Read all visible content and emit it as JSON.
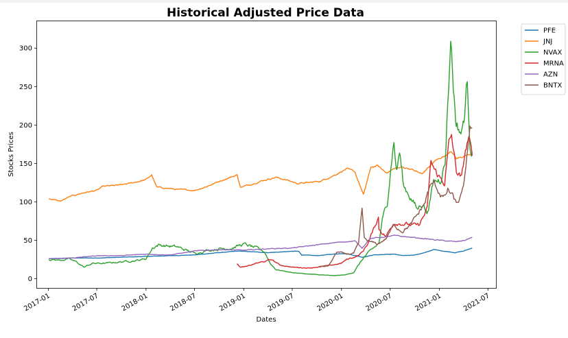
{
  "chart_data": {
    "type": "line",
    "title": "Historical Adjusted Price Data",
    "xlabel": "Dates",
    "ylabel": "Stocks Prices",
    "ylim": [
      -12,
      335
    ],
    "xlim": [
      "2016-11-20",
      "2021-07-31"
    ],
    "yticks": [
      0,
      50,
      100,
      150,
      200,
      250,
      300
    ],
    "xticks": [
      "2017-01",
      "2017-07",
      "2018-01",
      "2018-07",
      "2019-01",
      "2019-07",
      "2020-01",
      "2020-07",
      "2021-01",
      "2021-07"
    ],
    "grid": false,
    "legend_position": "outside-top-right",
    "series": [
      {
        "name": "PFE",
        "color": "#1f77b4",
        "points": [
          [
            "2017-01-03",
            26
          ],
          [
            "2017-04-01",
            27
          ],
          [
            "2017-07-01",
            27
          ],
          [
            "2017-10-01",
            28
          ],
          [
            "2018-01-02",
            29
          ],
          [
            "2018-04-01",
            30
          ],
          [
            "2018-07-01",
            31
          ],
          [
            "2018-10-01",
            34
          ],
          [
            "2018-12-15",
            36
          ],
          [
            "2019-02-01",
            35
          ],
          [
            "2019-04-01",
            34
          ],
          [
            "2019-06-01",
            35
          ],
          [
            "2019-07-25",
            36
          ],
          [
            "2019-08-05",
            31
          ],
          [
            "2019-10-01",
            30
          ],
          [
            "2019-12-01",
            32
          ],
          [
            "2020-01-15",
            33
          ],
          [
            "2020-03-20",
            28
          ],
          [
            "2020-05-01",
            31
          ],
          [
            "2020-07-15",
            32
          ],
          [
            "2020-08-15",
            30
          ],
          [
            "2020-10-01",
            31
          ],
          [
            "2020-11-09",
            34
          ],
          [
            "2020-12-10",
            38
          ],
          [
            "2021-01-15",
            36
          ],
          [
            "2021-03-01",
            34
          ],
          [
            "2021-04-01",
            36
          ],
          [
            "2021-05-03",
            40
          ]
        ]
      },
      {
        "name": "JNJ",
        "color": "#ff7f0e",
        "points": [
          [
            "2017-01-03",
            104
          ],
          [
            "2017-02-15",
            101
          ],
          [
            "2017-04-01",
            108
          ],
          [
            "2017-05-15",
            112
          ],
          [
            "2017-07-01",
            115
          ],
          [
            "2017-07-25",
            120
          ],
          [
            "2017-10-01",
            122
          ],
          [
            "2017-11-01",
            124
          ],
          [
            "2018-01-02",
            129
          ],
          [
            "2018-01-22",
            135
          ],
          [
            "2018-02-10",
            119
          ],
          [
            "2018-03-15",
            118
          ],
          [
            "2018-05-01",
            116
          ],
          [
            "2018-07-01",
            115
          ],
          [
            "2018-08-15",
            120
          ],
          [
            "2018-10-10",
            128
          ],
          [
            "2018-12-07",
            135
          ],
          [
            "2018-12-20",
            119
          ],
          [
            "2019-01-20",
            122
          ],
          [
            "2019-03-15",
            128
          ],
          [
            "2019-05-01",
            132
          ],
          [
            "2019-06-15",
            128
          ],
          [
            "2019-07-20",
            124
          ],
          [
            "2019-09-01",
            125
          ],
          [
            "2019-10-15",
            127
          ],
          [
            "2019-12-01",
            134
          ],
          [
            "2020-01-20",
            143
          ],
          [
            "2020-02-20",
            139
          ],
          [
            "2020-03-23",
            109
          ],
          [
            "2020-04-20",
            145
          ],
          [
            "2020-05-15",
            147
          ],
          [
            "2020-06-15",
            138
          ],
          [
            "2020-07-15",
            143
          ],
          [
            "2020-08-15",
            145
          ],
          [
            "2020-09-15",
            143
          ],
          [
            "2020-10-28",
            136
          ],
          [
            "2020-11-15",
            143
          ],
          [
            "2020-12-15",
            153
          ],
          [
            "2021-01-20",
            160
          ],
          [
            "2021-02-15",
            165
          ],
          [
            "2021-03-05",
            156
          ],
          [
            "2021-04-05",
            160
          ],
          [
            "2021-05-03",
            163
          ]
        ]
      },
      {
        "name": "NVAX",
        "color": "#2ca02c",
        "points": [
          [
            "2017-01-03",
            25
          ],
          [
            "2017-02-15",
            24
          ],
          [
            "2017-03-15",
            26
          ],
          [
            "2017-04-15",
            22
          ],
          [
            "2017-05-15",
            15
          ],
          [
            "2017-06-15",
            20
          ],
          [
            "2017-08-01",
            20
          ],
          [
            "2017-10-01",
            22
          ],
          [
            "2017-12-01",
            24
          ],
          [
            "2018-01-01",
            26
          ],
          [
            "2018-01-25",
            40
          ],
          [
            "2018-02-15",
            44
          ],
          [
            "2018-03-15",
            43
          ],
          [
            "2018-05-01",
            41
          ],
          [
            "2018-07-01",
            33
          ],
          [
            "2018-08-15",
            37
          ],
          [
            "2018-10-01",
            39
          ],
          [
            "2018-11-15",
            40
          ],
          [
            "2019-01-01",
            45
          ],
          [
            "2019-02-15",
            40
          ],
          [
            "2019-03-20",
            35
          ],
          [
            "2019-04-10",
            20
          ],
          [
            "2019-05-01",
            12
          ],
          [
            "2019-07-01",
            8
          ],
          [
            "2019-09-01",
            6
          ],
          [
            "2019-12-01",
            4
          ],
          [
            "2020-01-15",
            5
          ],
          [
            "2020-02-15",
            8
          ],
          [
            "2020-03-05",
            18
          ],
          [
            "2020-03-25",
            28
          ],
          [
            "2020-05-01",
            40
          ],
          [
            "2020-05-20",
            46
          ],
          [
            "2020-06-01",
            75
          ],
          [
            "2020-06-20",
            99
          ],
          [
            "2020-07-07",
            160
          ],
          [
            "2020-07-15",
            178
          ],
          [
            "2020-07-25",
            140
          ],
          [
            "2020-08-05",
            165
          ],
          [
            "2020-08-20",
            120
          ],
          [
            "2020-09-10",
            110
          ],
          [
            "2020-10-10",
            90
          ],
          [
            "2020-11-01",
            100
          ],
          [
            "2020-11-15",
            85
          ],
          [
            "2020-12-01",
            110
          ],
          [
            "2020-12-10",
            125
          ],
          [
            "2021-01-05",
            130
          ],
          [
            "2021-01-10",
            140
          ],
          [
            "2021-01-22",
            150
          ],
          [
            "2021-02-01",
            230
          ],
          [
            "2021-02-08",
            280
          ],
          [
            "2021-02-12",
            320
          ],
          [
            "2021-02-22",
            250
          ],
          [
            "2021-03-05",
            200
          ],
          [
            "2021-03-25",
            190
          ],
          [
            "2021-04-05",
            215
          ],
          [
            "2021-04-15",
            257
          ],
          [
            "2021-04-25",
            180
          ],
          [
            "2021-05-03",
            165
          ]
        ]
      },
      {
        "name": "MRNA",
        "color": "#d62728",
        "points": [
          [
            "2018-12-07",
            19
          ],
          [
            "2018-12-20",
            15
          ],
          [
            "2019-01-15",
            16
          ],
          [
            "2019-02-15",
            20
          ],
          [
            "2019-03-15",
            22
          ],
          [
            "2019-04-15",
            25
          ],
          [
            "2019-05-15",
            18
          ],
          [
            "2019-07-01",
            15
          ],
          [
            "2019-09-01",
            14
          ],
          [
            "2019-11-15",
            17
          ],
          [
            "2019-12-31",
            20
          ],
          [
            "2020-01-20",
            25
          ],
          [
            "2020-02-15",
            28
          ],
          [
            "2020-03-03",
            30
          ],
          [
            "2020-03-20",
            35
          ],
          [
            "2020-04-10",
            47
          ],
          [
            "2020-05-18",
            80
          ],
          [
            "2020-05-20",
            65
          ],
          [
            "2020-06-15",
            55
          ],
          [
            "2020-07-15",
            73
          ],
          [
            "2020-08-15",
            72
          ],
          [
            "2020-09-15",
            70
          ],
          [
            "2020-10-15",
            69
          ],
          [
            "2020-11-16",
            90
          ],
          [
            "2020-11-30",
            152
          ],
          [
            "2020-12-15",
            140
          ],
          [
            "2021-01-05",
            130
          ],
          [
            "2021-01-20",
            125
          ],
          [
            "2021-02-05",
            175
          ],
          [
            "2021-02-15",
            185
          ],
          [
            "2021-03-05",
            140
          ],
          [
            "2021-03-25",
            130
          ],
          [
            "2021-04-05",
            160
          ],
          [
            "2021-04-20",
            185
          ],
          [
            "2021-05-03",
            160
          ]
        ]
      },
      {
        "name": "AZN",
        "color": "#9467bd",
        "points": [
          [
            "2017-01-03",
            26
          ],
          [
            "2017-04-01",
            27
          ],
          [
            "2017-07-01",
            30
          ],
          [
            "2017-10-01",
            30
          ],
          [
            "2018-01-02",
            32
          ],
          [
            "2018-04-01",
            31
          ],
          [
            "2018-07-01",
            36
          ],
          [
            "2018-10-01",
            38
          ],
          [
            "2019-01-02",
            37
          ],
          [
            "2019-04-01",
            39
          ],
          [
            "2019-07-01",
            40
          ],
          [
            "2019-10-01",
            44
          ],
          [
            "2020-01-02",
            48
          ],
          [
            "2020-02-20",
            49
          ],
          [
            "2020-03-18",
            40
          ],
          [
            "2020-04-15",
            52
          ],
          [
            "2020-07-15",
            56
          ],
          [
            "2020-09-15",
            54
          ],
          [
            "2020-11-09",
            52
          ],
          [
            "2021-01-01",
            50
          ],
          [
            "2021-03-05",
            48
          ],
          [
            "2021-04-05",
            50
          ],
          [
            "2021-05-03",
            54
          ]
        ]
      },
      {
        "name": "BNTX",
        "color": "#8c564b",
        "points": [
          [
            "2019-10-10",
            15
          ],
          [
            "2019-11-15",
            17
          ],
          [
            "2019-12-15",
            35
          ],
          [
            "2020-01-15",
            32
          ],
          [
            "2020-02-15",
            33
          ],
          [
            "2020-03-05",
            45
          ],
          [
            "2020-03-18",
            90
          ],
          [
            "2020-03-26",
            52
          ],
          [
            "2020-04-15",
            48
          ],
          [
            "2020-05-15",
            45
          ],
          [
            "2020-06-15",
            52
          ],
          [
            "2020-07-15",
            70
          ],
          [
            "2020-08-15",
            62
          ],
          [
            "2020-09-15",
            70
          ],
          [
            "2020-10-15",
            85
          ],
          [
            "2020-11-09",
            100
          ],
          [
            "2020-11-20",
            115
          ],
          [
            "2020-12-10",
            125
          ],
          [
            "2021-01-05",
            110
          ],
          [
            "2021-01-20",
            105
          ],
          [
            "2021-02-01",
            115
          ],
          [
            "2021-02-15",
            110
          ],
          [
            "2021-03-05",
            97
          ],
          [
            "2021-03-25",
            108
          ],
          [
            "2021-04-10",
            140
          ],
          [
            "2021-04-25",
            200
          ],
          [
            "2021-05-03",
            196
          ]
        ]
      }
    ]
  }
}
